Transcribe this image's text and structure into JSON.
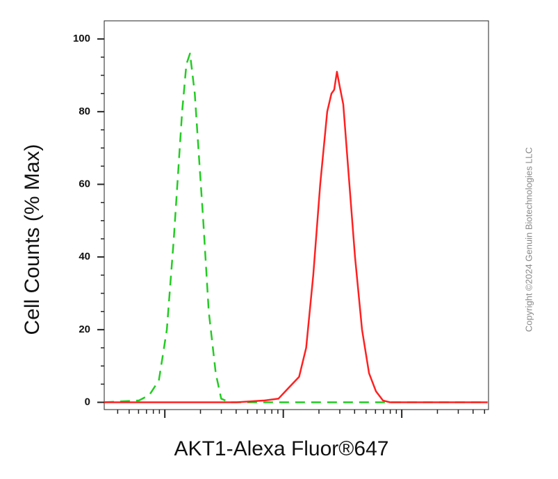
{
  "chart_data": {
    "type": "line",
    "log_x": true,
    "x_label": "AKT1-Alexa Fluor®647",
    "y_label": "Cell Counts (% Max)",
    "copyright": "Copyright ©2024 Genuin Biotechnologies LLC",
    "xlim": [
      3.08,
      5400
    ],
    "ylim": [
      -2,
      105
    ],
    "xticks": [
      4,
      5,
      6,
      7,
      8,
      9,
      10,
      20,
      30,
      40,
      50,
      60,
      70,
      80,
      90,
      100,
      200,
      300,
      400,
      500,
      600,
      700,
      800,
      900,
      1000,
      2000,
      3000,
      4000,
      5000
    ],
    "yticks": [
      0,
      20,
      40,
      60,
      80,
      100
    ],
    "yminor_ticks": [
      5,
      10,
      15,
      25,
      30,
      35,
      45,
      50,
      55,
      65,
      70,
      75,
      85,
      90,
      95
    ],
    "series": [
      {
        "color": "#22cc22",
        "dashed": true,
        "x": [
          3.08,
          6.05,
          7.4,
          8.9,
          10.4,
          11.9,
          14.0,
          15.2,
          16.3,
          17.9,
          19.2,
          21.1,
          23.5,
          26.9,
          29.9,
          35.2,
          119,
          352,
          5300
        ],
        "values": [
          0,
          0.5,
          2,
          6,
          20,
          45,
          80,
          93,
          96,
          85,
          70,
          50,
          25,
          8,
          1,
          0,
          0,
          0,
          0
        ]
      },
      {
        "color": "#ff2020",
        "dashed": false,
        "x": [
          3.08,
          40.4,
          69.3,
          91,
          111,
          136,
          156,
          179,
          205,
          235,
          255,
          269,
          284,
          299,
          321,
          352,
          403,
          462,
          530,
          606,
          694,
          795,
          5300
        ],
        "values": [
          0,
          0,
          0.5,
          1,
          4,
          7,
          15,
          35,
          60,
          80,
          85,
          86,
          91,
          87,
          82,
          65,
          40,
          20,
          8,
          3,
          0.5,
          0,
          0
        ]
      }
    ]
  }
}
